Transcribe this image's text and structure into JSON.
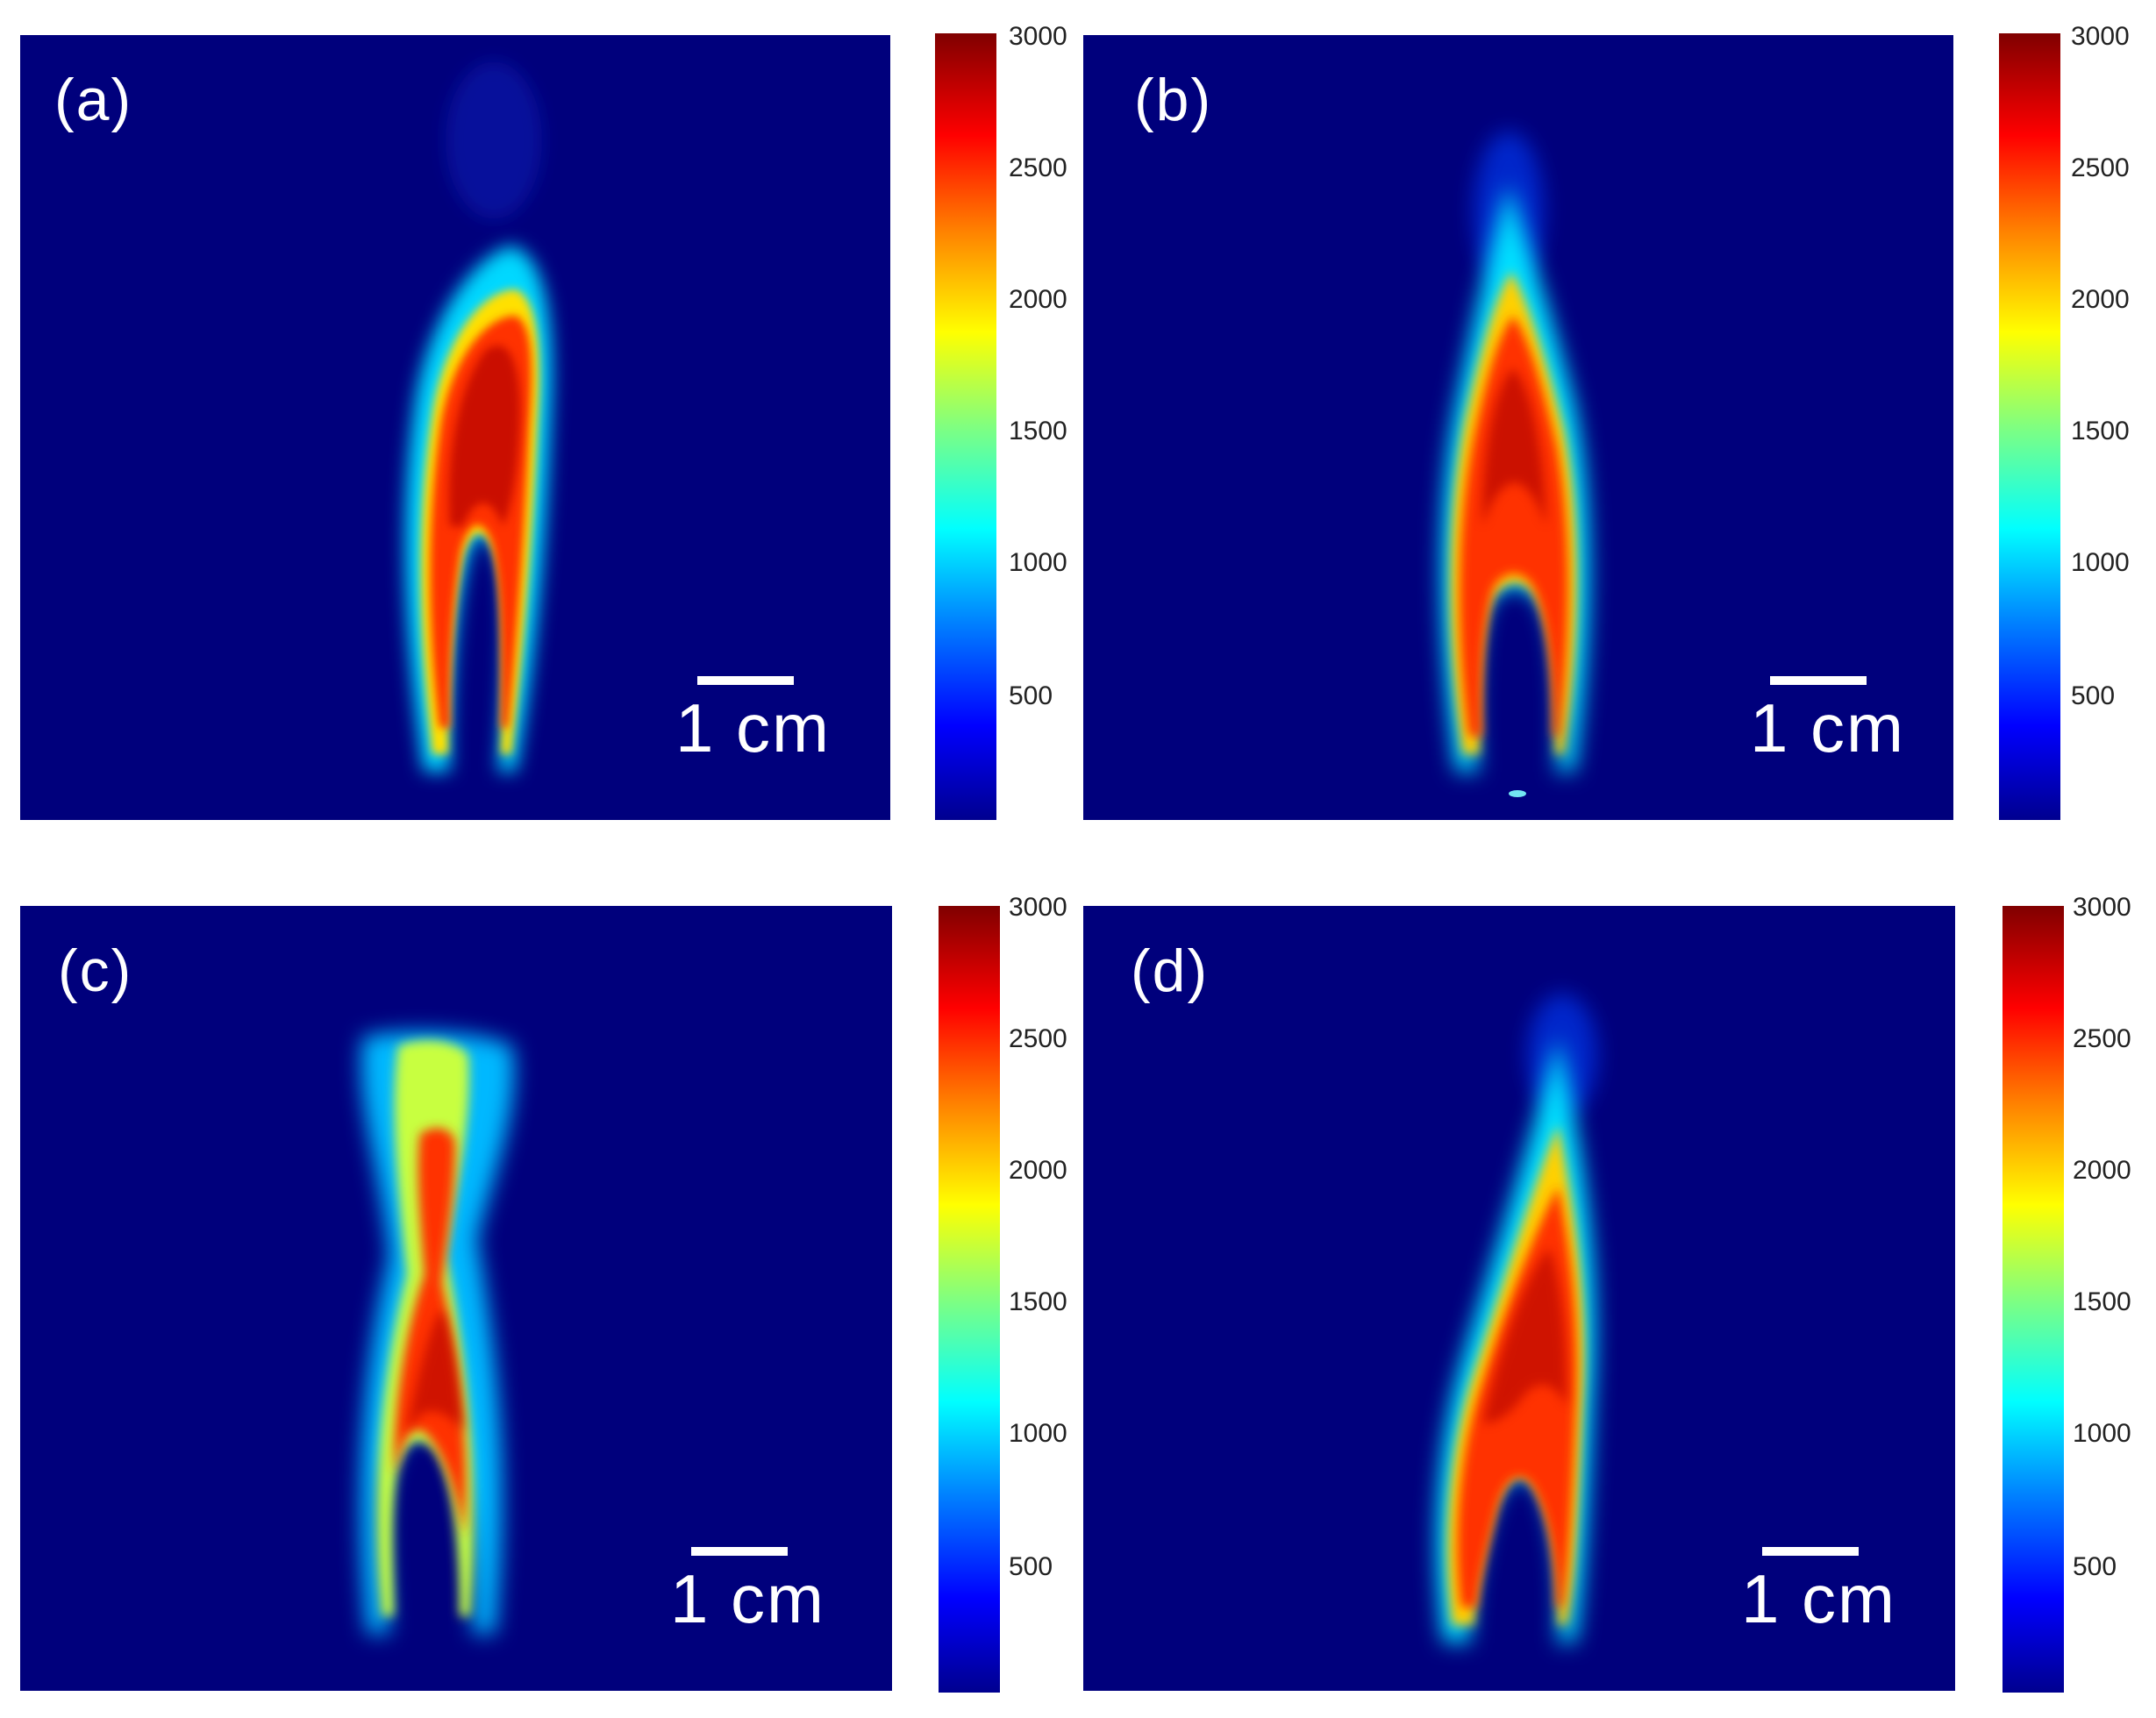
{
  "panels": [
    {
      "label": "(a)",
      "scale_label": "1 cm",
      "colorbar_ticks": [
        "3000",
        "2500",
        "2000",
        "1500",
        "1000",
        "500"
      ]
    },
    {
      "label": "(b)",
      "scale_label": "1 cm",
      "colorbar_ticks": [
        "3000",
        "2500",
        "2000",
        "1500",
        "1000",
        "500"
      ]
    },
    {
      "label": "(c)",
      "scale_label": "1 cm",
      "colorbar_ticks": [
        "3000",
        "2500",
        "2000",
        "1500",
        "1000",
        "500"
      ]
    },
    {
      "label": "(d)",
      "scale_label": "1 cm",
      "colorbar_ticks": [
        "3000",
        "2500",
        "2000",
        "1500",
        "1000",
        "500"
      ]
    }
  ],
  "colors": {
    "background": "#00007c",
    "colormap": [
      "#00008f",
      "#0000ff",
      "#0080ff",
      "#00ffff",
      "#80ff80",
      "#ffff00",
      "#ff8000",
      "#ff0000",
      "#800000"
    ]
  }
}
